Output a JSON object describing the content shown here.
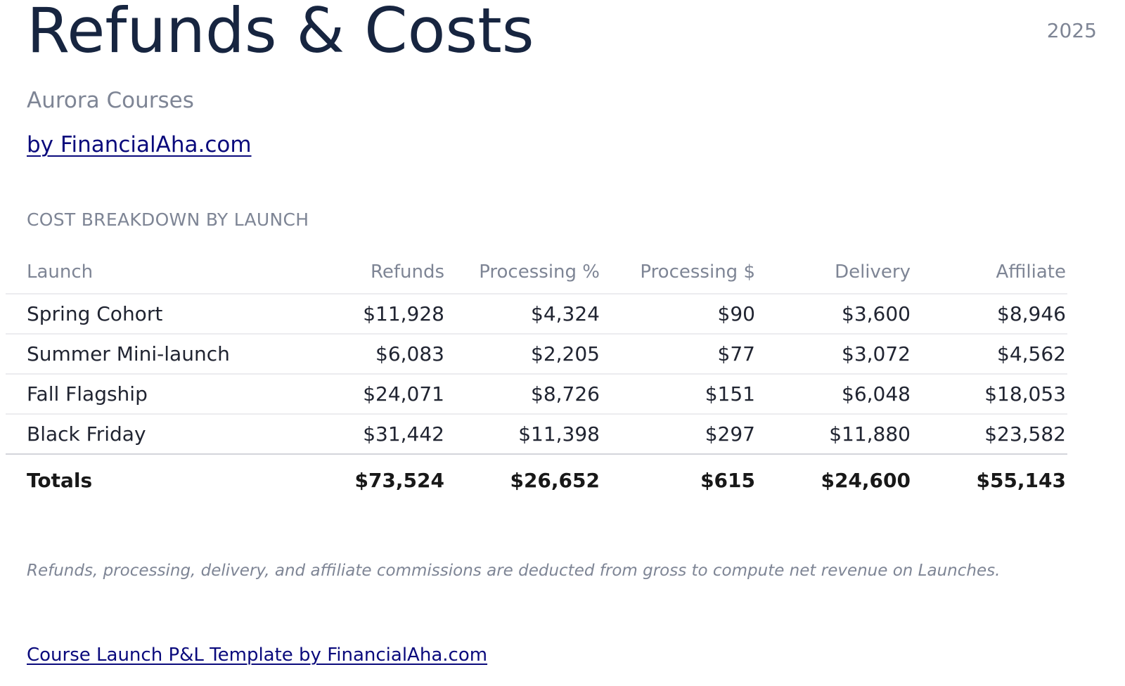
{
  "header": {
    "title": "Refunds & Costs",
    "year": "2025",
    "company": "Aurora Courses",
    "byline": "by FinancialAha.com"
  },
  "section": {
    "title": "COST BREAKDOWN BY LAUNCH"
  },
  "table": {
    "columns": [
      "Launch",
      "Refunds",
      "Processing %",
      "Processing $",
      "Delivery",
      "Affiliate"
    ],
    "rows": [
      [
        "Spring Cohort",
        "$11,928",
        "$4,324",
        "$90",
        "$3,600",
        "$8,946"
      ],
      [
        "Summer Mini-launch",
        "$6,083",
        "$2,205",
        "$77",
        "$3,072",
        "$4,562"
      ],
      [
        "Fall Flagship",
        "$24,071",
        "$8,726",
        "$151",
        "$6,048",
        "$18,053"
      ],
      [
        "Black Friday",
        "$31,442",
        "$11,398",
        "$297",
        "$11,880",
        "$23,582"
      ]
    ],
    "totals": [
      "Totals",
      "$73,524",
      "$26,652",
      "$615",
      "$24,600",
      "$55,143"
    ]
  },
  "note": "Refunds, processing, delivery, and affiliate commissions are deducted from gross to compute net revenue on Launches.",
  "footer": {
    "link_text": "Course Launch P&L Template by FinancialAha.com"
  },
  "colors": {
    "title": "#172540",
    "muted": "#7e8595",
    "link": "#0a0a7c",
    "body_text": "#202431"
  }
}
